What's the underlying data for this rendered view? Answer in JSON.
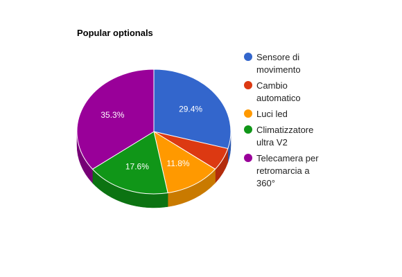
{
  "chart_data": {
    "type": "pie",
    "title": "Popular optionals",
    "three_d": true,
    "legend_position": "right",
    "slices": [
      {
        "label": "Sensore di movimento",
        "legend_lines": [
          "Sensore di",
          "movimento"
        ],
        "value": 29.4,
        "display": "29.4%",
        "color": "#3366cc",
        "side_color": "#2a56ad"
      },
      {
        "label": "Cambio automatico",
        "legend_lines": [
          "Cambio",
          "automatico"
        ],
        "value": 5.9,
        "display": "",
        "color": "#dc3912",
        "side_color": "#b32c0c"
      },
      {
        "label": "Luci led",
        "legend_lines": [
          "Luci led"
        ],
        "value": 11.8,
        "display": "11.8%",
        "color": "#ff9900",
        "side_color": "#c97a00"
      },
      {
        "label": "Climatizzatore ultra V2",
        "legend_lines": [
          "Climatizzatore",
          "ultra V2"
        ],
        "value": 17.6,
        "display": "17.6%",
        "color": "#109618",
        "side_color": "#0c7312"
      },
      {
        "label": "Telecamera per retromarcia a 360°",
        "legend_lines": [
          "Telecamera per",
          "retromarcia a",
          "360°"
        ],
        "value": 35.3,
        "display": "35.3%",
        "color": "#990099",
        "side_color": "#760076"
      }
    ]
  }
}
